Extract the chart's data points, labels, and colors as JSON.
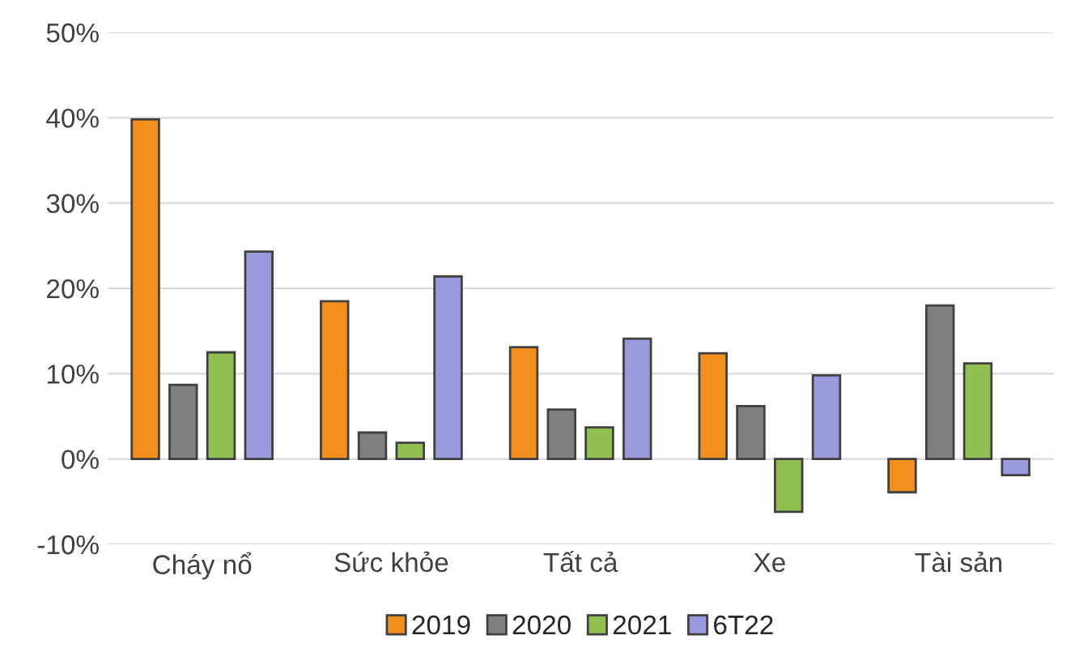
{
  "chart_data": {
    "type": "bar",
    "categories": [
      "Cháy nổ",
      "Sức khỏe",
      "Tất cả",
      "Xe",
      "Tài sản"
    ],
    "series": [
      {
        "name": "2019",
        "color": "#f28e1c",
        "values": [
          39.8,
          18.5,
          13.1,
          12.4,
          -3.9
        ]
      },
      {
        "name": "2020",
        "color": "#7f7f7f",
        "values": [
          8.7,
          3.1,
          5.8,
          6.2,
          18
        ]
      },
      {
        "name": "2021",
        "color": "#92c050",
        "values": [
          12.5,
          1.9,
          3.7,
          -6.2,
          11.2
        ]
      },
      {
        "name": "6T22",
        "color": "#9999dd",
        "values": [
          24.3,
          21.4,
          14.1,
          9.8,
          -1.9
        ]
      }
    ],
    "ylim": [
      -10,
      50
    ],
    "yticks": [
      {
        "value": -10,
        "label": "-10%"
      },
      {
        "value": 0,
        "label": "0%"
      },
      {
        "value": 10,
        "label": "10%"
      },
      {
        "value": 20,
        "label": "20%"
      },
      {
        "value": 30,
        "label": "30%"
      },
      {
        "value": 40,
        "label": "40%"
      },
      {
        "value": 50,
        "label": "50%"
      }
    ],
    "grid": "y",
    "legend": "bottom"
  }
}
